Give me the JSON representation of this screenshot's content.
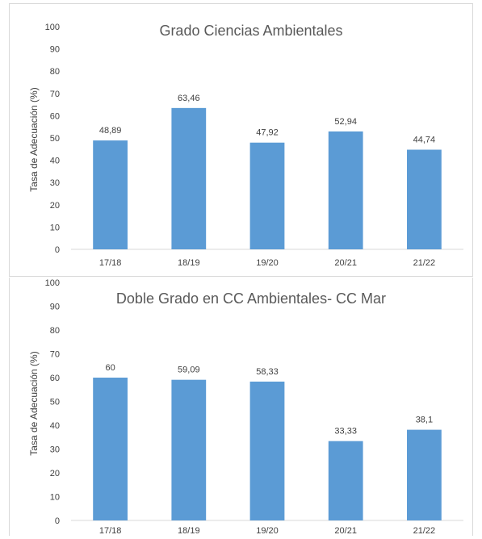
{
  "chart_data": [
    {
      "type": "bar",
      "title": "Grado Ciencias Ambientales",
      "ylabel": "Tasa de Adecuación (%)",
      "xlabel": "",
      "categories": [
        "17/18",
        "18/19",
        "19/20",
        "20/21",
        "21/22"
      ],
      "values": [
        48.89,
        63.46,
        47.92,
        52.94,
        44.74
      ],
      "data_labels": [
        "48,89",
        "63,46",
        "47,92",
        "52,94",
        "44,74"
      ],
      "ylim": [
        0,
        100
      ],
      "yticks": [
        "0",
        "10",
        "20",
        "30",
        "40",
        "50",
        "60",
        "70",
        "80",
        "90",
        "100"
      ],
      "grid": false,
      "bar_color": "#5b9bd5"
    },
    {
      "type": "bar",
      "title": "Doble Grado en  CC Ambientales- CC Mar",
      "ylabel": "Tasa de Adecuación (%)",
      "xlabel": "",
      "categories": [
        "17/18",
        "18/19",
        "19/20",
        "20/21",
        "21/22"
      ],
      "values": [
        60,
        59.09,
        58.33,
        33.33,
        38.1
      ],
      "data_labels": [
        "60",
        "59,09",
        "58,33",
        "33,33",
        "38,1"
      ],
      "ylim": [
        0,
        100
      ],
      "yticks": [
        "0",
        "10",
        "20",
        "30",
        "40",
        "50",
        "60",
        "70",
        "80",
        "90",
        "100"
      ],
      "grid": false,
      "bar_color": "#5b9bd5"
    }
  ]
}
